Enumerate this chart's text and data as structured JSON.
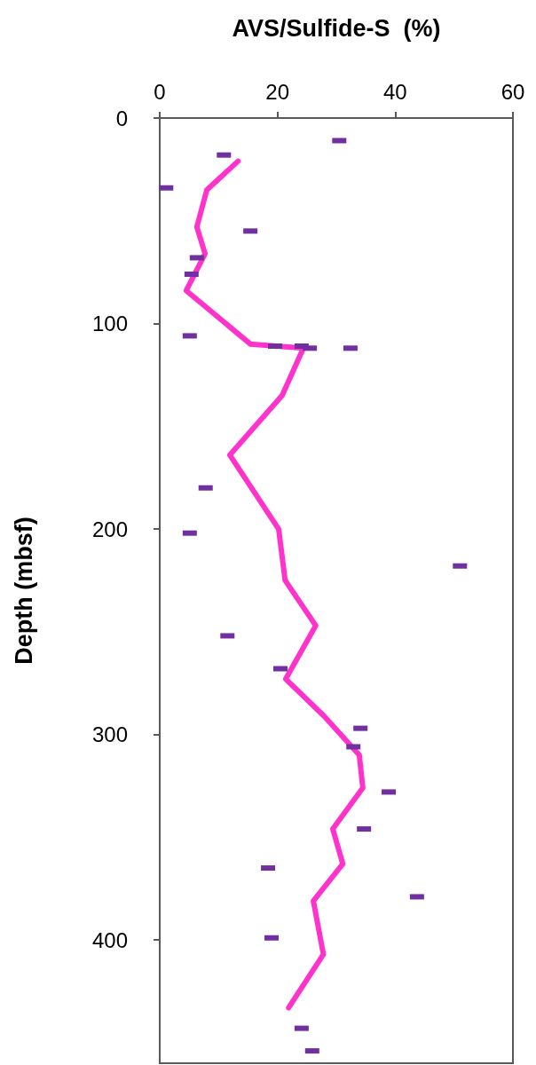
{
  "chart_data": {
    "type": "line",
    "xlabel": "AVS/Sulfide-S  (%)",
    "ylabel": "Depth (mbsf)",
    "xlim": [
      0,
      60
    ],
    "xticks": [
      0,
      20,
      40,
      60
    ],
    "ylim": [
      460,
      0
    ],
    "yticks": [
      0,
      100,
      200,
      300,
      400
    ],
    "grid": false,
    "series": [
      {
        "color": "#ff33cc",
        "marker": "none",
        "x": [
          13.3,
          8.0,
          6.3,
          7.7,
          4.5,
          15.4,
          24.4,
          20.8,
          11.9,
          20.2,
          21.3,
          26.5,
          21.4,
          27.9,
          33.9,
          34.5,
          29.4,
          31.1,
          26.1,
          27.8,
          21.9
        ],
        "values": [
          21,
          35,
          53,
          66,
          84,
          110,
          112,
          135,
          164,
          200,
          225,
          247,
          273,
          291,
          310,
          326,
          346,
          363,
          381,
          407,
          433
        ]
      },
      {
        "type": "scatter",
        "color": "#7030a0",
        "marker": "square",
        "x": [
          30.5,
          10.9,
          1.1,
          15.4,
          6.3,
          5.4,
          5.1,
          19.6,
          24.1,
          25.5,
          32.4,
          7.8,
          5.1,
          51,
          11.5,
          20.5,
          34.1,
          32.9,
          38.9,
          34.7,
          18.4,
          43.7,
          19,
          24.1,
          25.9
        ],
        "values": [
          11,
          18,
          34,
          55,
          68,
          76,
          106,
          111,
          111,
          112,
          112,
          180,
          202,
          218,
          252,
          268,
          297,
          306,
          328,
          346,
          365,
          379,
          399,
          443,
          454
        ]
      }
    ]
  }
}
